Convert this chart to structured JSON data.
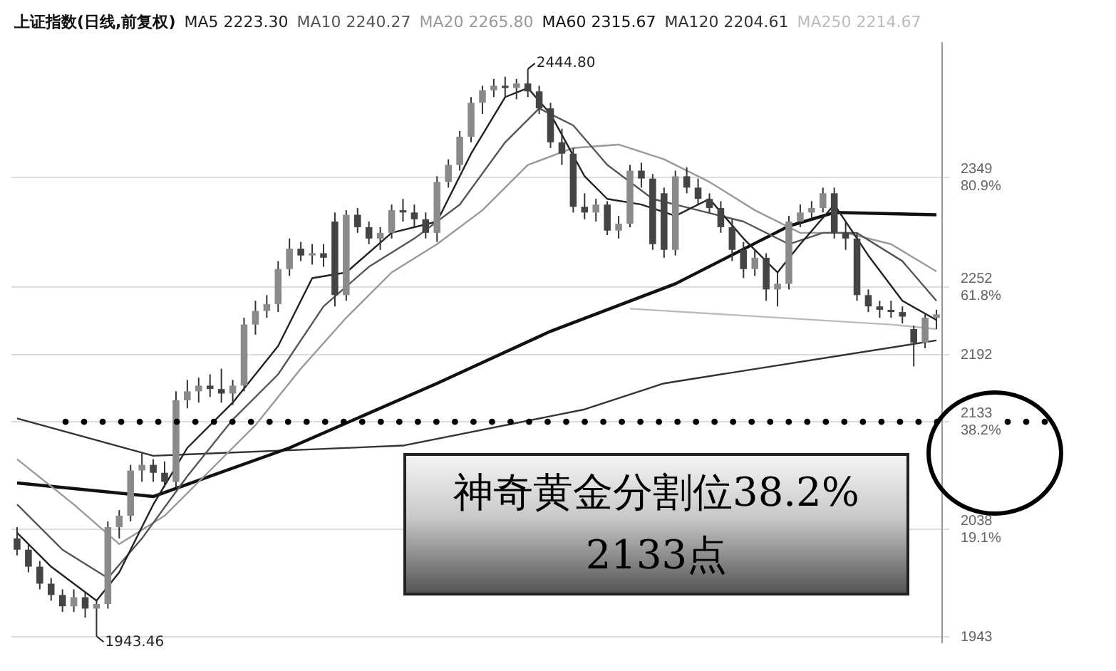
{
  "chart_data": {
    "type": "candlestick",
    "title": "上证指数(日线,前复权)",
    "categories": [
      null,
      null,
      null,
      null,
      null,
      null,
      null,
      null,
      null,
      null,
      null,
      null,
      null,
      null,
      null,
      null,
      null,
      null,
      null,
      null,
      null,
      null,
      null,
      null,
      null,
      null,
      null,
      null,
      null,
      null,
      null,
      null,
      null,
      null,
      null,
      null,
      null,
      null,
      null,
      null,
      null,
      null,
      null,
      null,
      null,
      null,
      null,
      null,
      null,
      null,
      null,
      null,
      null,
      null,
      null,
      null,
      null,
      null,
      null,
      null,
      null,
      null,
      null,
      null,
      null,
      null,
      null,
      null,
      null,
      null,
      null,
      null,
      null,
      null,
      null,
      null,
      null,
      null,
      null,
      null,
      null,
      null
    ],
    "ohlc": [
      [
        2030,
        2040,
        2015,
        2020
      ],
      [
        2020,
        2025,
        2000,
        2005
      ],
      [
        2005,
        2010,
        1985,
        1990
      ],
      [
        1990,
        1995,
        1975,
        1980
      ],
      [
        1980,
        1985,
        1965,
        1970
      ],
      [
        1970,
        1985,
        1965,
        1978
      ],
      [
        1978,
        1982,
        1960,
        1968
      ],
      [
        1968,
        1975,
        1943.46,
        1972
      ],
      [
        1972,
        2045,
        1968,
        2040
      ],
      [
        2040,
        2055,
        2030,
        2050
      ],
      [
        2050,
        2095,
        2045,
        2090
      ],
      [
        2090,
        2105,
        2080,
        2095
      ],
      [
        2095,
        2100,
        2080,
        2088
      ],
      [
        2088,
        2098,
        2075,
        2080
      ],
      [
        2080,
        2160,
        2075,
        2152
      ],
      [
        2152,
        2170,
        2145,
        2160
      ],
      [
        2160,
        2172,
        2150,
        2165
      ],
      [
        2165,
        2175,
        2155,
        2162
      ],
      [
        2162,
        2180,
        2150,
        2158
      ],
      [
        2158,
        2170,
        2148,
        2165
      ],
      [
        2165,
        2225,
        2160,
        2219
      ],
      [
        2219,
        2240,
        2210,
        2231
      ],
      [
        2231,
        2245,
        2225,
        2237
      ],
      [
        2237,
        2275,
        2230,
        2268
      ],
      [
        2268,
        2295,
        2262,
        2286
      ],
      [
        2286,
        2292,
        2275,
        2280
      ],
      [
        2280,
        2290,
        2272,
        2282
      ],
      [
        2282,
        2290,
        2270,
        2278
      ],
      [
        2310,
        2318,
        2235,
        2245
      ],
      [
        2245,
        2320,
        2240,
        2316
      ],
      [
        2316,
        2322,
        2300,
        2305
      ],
      [
        2305,
        2310,
        2290,
        2295
      ],
      [
        2295,
        2305,
        2285,
        2300
      ],
      [
        2300,
        2325,
        2295,
        2320
      ],
      [
        2320,
        2330,
        2310,
        2318
      ],
      [
        2318,
        2325,
        2305,
        2312
      ],
      [
        2312,
        2318,
        2295,
        2300
      ],
      [
        2300,
        2350,
        2292,
        2345
      ],
      [
        2345,
        2365,
        2340,
        2360
      ],
      [
        2360,
        2390,
        2355,
        2385
      ],
      [
        2385,
        2420,
        2380,
        2415
      ],
      [
        2415,
        2430,
        2405,
        2426
      ],
      [
        2426,
        2436,
        2420,
        2430
      ],
      [
        2430,
        2438,
        2420,
        2428
      ],
      [
        2428,
        2436,
        2418,
        2432
      ],
      [
        2432,
        2444.8,
        2420,
        2425
      ],
      [
        2425,
        2430,
        2405,
        2410
      ],
      [
        2410,
        2415,
        2375,
        2380
      ],
      [
        2380,
        2392,
        2360,
        2370
      ],
      [
        2370,
        2375,
        2318,
        2323
      ],
      [
        2323,
        2335,
        2312,
        2318
      ],
      [
        2318,
        2330,
        2310,
        2325
      ],
      [
        2325,
        2328,
        2298,
        2302
      ],
      [
        2302,
        2315,
        2295,
        2308
      ],
      [
        2308,
        2360,
        2305,
        2355
      ],
      [
        2355,
        2362,
        2340,
        2348
      ],
      [
        2348,
        2352,
        2285,
        2290
      ],
      [
        2335,
        2340,
        2278,
        2285
      ],
      [
        2285,
        2355,
        2280,
        2350
      ],
      [
        2350,
        2358,
        2335,
        2340
      ],
      [
        2340,
        2348,
        2325,
        2330
      ],
      [
        2330,
        2335,
        2318,
        2322
      ],
      [
        2322,
        2328,
        2300,
        2305
      ],
      [
        2305,
        2312,
        2275,
        2285
      ],
      [
        2285,
        2292,
        2260,
        2268
      ],
      [
        2268,
        2285,
        2262,
        2278
      ],
      [
        2278,
        2282,
        2240,
        2250
      ],
      [
        2250,
        2265,
        2235,
        2255
      ],
      [
        2255,
        2315,
        2250,
        2310
      ],
      [
        2310,
        2325,
        2305,
        2318
      ],
      [
        2318,
        2328,
        2312,
        2322
      ],
      [
        2322,
        2340,
        2318,
        2335
      ],
      [
        2335,
        2340,
        2295,
        2300
      ],
      [
        2300,
        2310,
        2285,
        2295
      ],
      [
        2295,
        2300,
        2240,
        2245
      ],
      [
        2245,
        2250,
        2230,
        2235
      ],
      [
        2235,
        2240,
        2225,
        2232
      ],
      [
        2232,
        2240,
        2225,
        2230
      ],
      [
        2230,
        2235,
        2220,
        2226
      ],
      [
        2215,
        2218,
        2182,
        2203
      ],
      [
        2203,
        2228,
        2198,
        2225
      ],
      [
        2225,
        2232,
        2215,
        2228
      ]
    ],
    "series": [
      {
        "name": "MA5 2223.30",
        "type": "line",
        "color": "#222222",
        "values": [
          2035,
          null,
          null,
          2005,
          null,
          null,
          null,
          1975,
          null,
          2000,
          null,
          null,
          2060,
          null,
          null,
          2110,
          null,
          null,
          null,
          2150,
          null,
          null,
          null,
          2200,
          null,
          null,
          2260,
          null,
          null,
          2265,
          null,
          null,
          null,
          2300,
          null,
          null,
          null,
          2310,
          null,
          null,
          2370,
          null,
          null,
          2420,
          null,
          2428,
          null,
          2405,
          null,
          null,
          2350,
          null,
          2330,
          null,
          null,
          2325,
          null,
          null,
          2315,
          null,
          null,
          2330,
          null,
          null,
          2295,
          null,
          null,
          2265,
          null,
          2290,
          null,
          null,
          2325,
          null,
          null,
          2280,
          null,
          null,
          2240,
          null,
          null,
          2223
        ]
      },
      {
        "name": "MA10 2240.27",
        "type": "line",
        "color": "#555555",
        "values": [
          2060,
          null,
          null,
          null,
          2020,
          null,
          null,
          null,
          1995,
          null,
          null,
          2030,
          null,
          null,
          null,
          2085,
          null,
          null,
          null,
          2135,
          null,
          null,
          null,
          2175,
          null,
          null,
          null,
          2235,
          null,
          null,
          null,
          2270,
          null,
          null,
          null,
          2295,
          null,
          null,
          null,
          2325,
          null,
          null,
          null,
          2380,
          null,
          null,
          2410,
          null,
          null,
          2395,
          null,
          null,
          2360,
          null,
          null,
          null,
          2330,
          null,
          null,
          null,
          2320,
          null,
          null,
          null,
          2310,
          null,
          null,
          null,
          2290,
          null,
          null,
          2300,
          null,
          null,
          2300,
          null,
          null,
          null,
          2275,
          null,
          null,
          2240
        ]
      },
      {
        "name": "MA20 2265.80",
        "type": "line",
        "color": "#999999",
        "values": [
          2100,
          null,
          null,
          null,
          null,
          2060,
          null,
          null,
          null,
          2025,
          null,
          null,
          null,
          2050,
          null,
          null,
          null,
          2090,
          null,
          null,
          null,
          2130,
          null,
          null,
          null,
          2180,
          null,
          null,
          null,
          2225,
          null,
          null,
          null,
          2265,
          null,
          null,
          null,
          2290,
          null,
          null,
          null,
          2320,
          null,
          null,
          null,
          2360,
          null,
          null,
          null,
          2375,
          null,
          null,
          null,
          2378,
          null,
          null,
          null,
          2365,
          null,
          null,
          null,
          2345,
          null,
          null,
          null,
          2320,
          null,
          null,
          null,
          2300,
          null,
          null,
          null,
          2300,
          null,
          null,
          null,
          2290,
          null,
          null,
          null,
          2266
        ]
      },
      {
        "name": "MA60 2315.67",
        "type": "line",
        "color": "#111111",
        "values": [
          2079,
          null,
          null,
          null,
          null,
          null,
          null,
          null,
          null,
          null,
          null,
          null,
          2067,
          null,
          null,
          null,
          null,
          null,
          null,
          null,
          null,
          null,
          null,
          null,
          2110,
          null,
          null,
          null,
          null,
          null,
          null,
          null,
          null,
          null,
          null,
          null,
          null,
          2167,
          null,
          null,
          null,
          null,
          null,
          null,
          null,
          null,
          null,
          2213,
          null,
          null,
          null,
          null,
          null,
          null,
          null,
          null,
          null,
          null,
          2255,
          null,
          null,
          null,
          null,
          null,
          null,
          null,
          null,
          null,
          2306,
          null,
          null,
          null,
          2318,
          null,
          null,
          null,
          null,
          null,
          null,
          null,
          null,
          2316
        ]
      },
      {
        "name": "MA120 2204.61",
        "type": "line",
        "color": "#333333",
        "values": [
          2136,
          null,
          null,
          null,
          null,
          null,
          null,
          null,
          null,
          null,
          null,
          null,
          2103,
          null,
          null,
          null,
          null,
          null,
          null,
          null,
          null,
          null,
          null,
          null,
          null,
          null,
          null,
          null,
          null,
          null,
          null,
          null,
          null,
          null,
          2112,
          null,
          null,
          null,
          null,
          null,
          null,
          null,
          null,
          null,
          null,
          null,
          null,
          null,
          null,
          null,
          2144,
          null,
          null,
          null,
          null,
          null,
          null,
          2167,
          null,
          null,
          null,
          null,
          null,
          null,
          null,
          null,
          null,
          null,
          null,
          null,
          null,
          null,
          null,
          null,
          null,
          null,
          null,
          null,
          null,
          null,
          null,
          2205
        ]
      },
      {
        "name": "MA250 2214.67",
        "type": "line",
        "color": "#bbbbbb",
        "values": [
          null,
          null,
          null,
          null,
          null,
          null,
          null,
          null,
          null,
          null,
          null,
          null,
          null,
          null,
          null,
          null,
          null,
          null,
          null,
          null,
          null,
          null,
          null,
          null,
          null,
          null,
          null,
          null,
          null,
          null,
          null,
          null,
          null,
          null,
          null,
          null,
          null,
          null,
          null,
          null,
          null,
          null,
          null,
          null,
          null,
          null,
          null,
          null,
          null,
          null,
          null,
          null,
          null,
          null,
          2233,
          null,
          null,
          null,
          null,
          null,
          null,
          null,
          null,
          null,
          null,
          null,
          null,
          null,
          null,
          null,
          null,
          null,
          null,
          null,
          null,
          null,
          null,
          2219,
          null,
          null,
          null,
          2215
        ]
      }
    ],
    "ylim": [
      1938,
      2468
    ],
    "yticks": [
      {
        "value": 2349,
        "label": "2349\n80.9%"
      },
      {
        "value": 2252,
        "label": "2252\n61.8%"
      },
      2192,
      {
        "value": 2133,
        "label": "2133\n38.2%"
      },
      {
        "value": 2038,
        "label": "2038\n19.1%"
      },
      1943
    ],
    "tick_labels": "y",
    "grid": "y",
    "ref_lines": [
      {
        "axis": "y",
        "value": 2133,
        "label": "神奇黄金分割位38.2%\n2133点",
        "color": "#000000",
        "line_style": "dotted"
      }
    ],
    "annotations": [
      "2444.80",
      "1943.46"
    ]
  }
}
